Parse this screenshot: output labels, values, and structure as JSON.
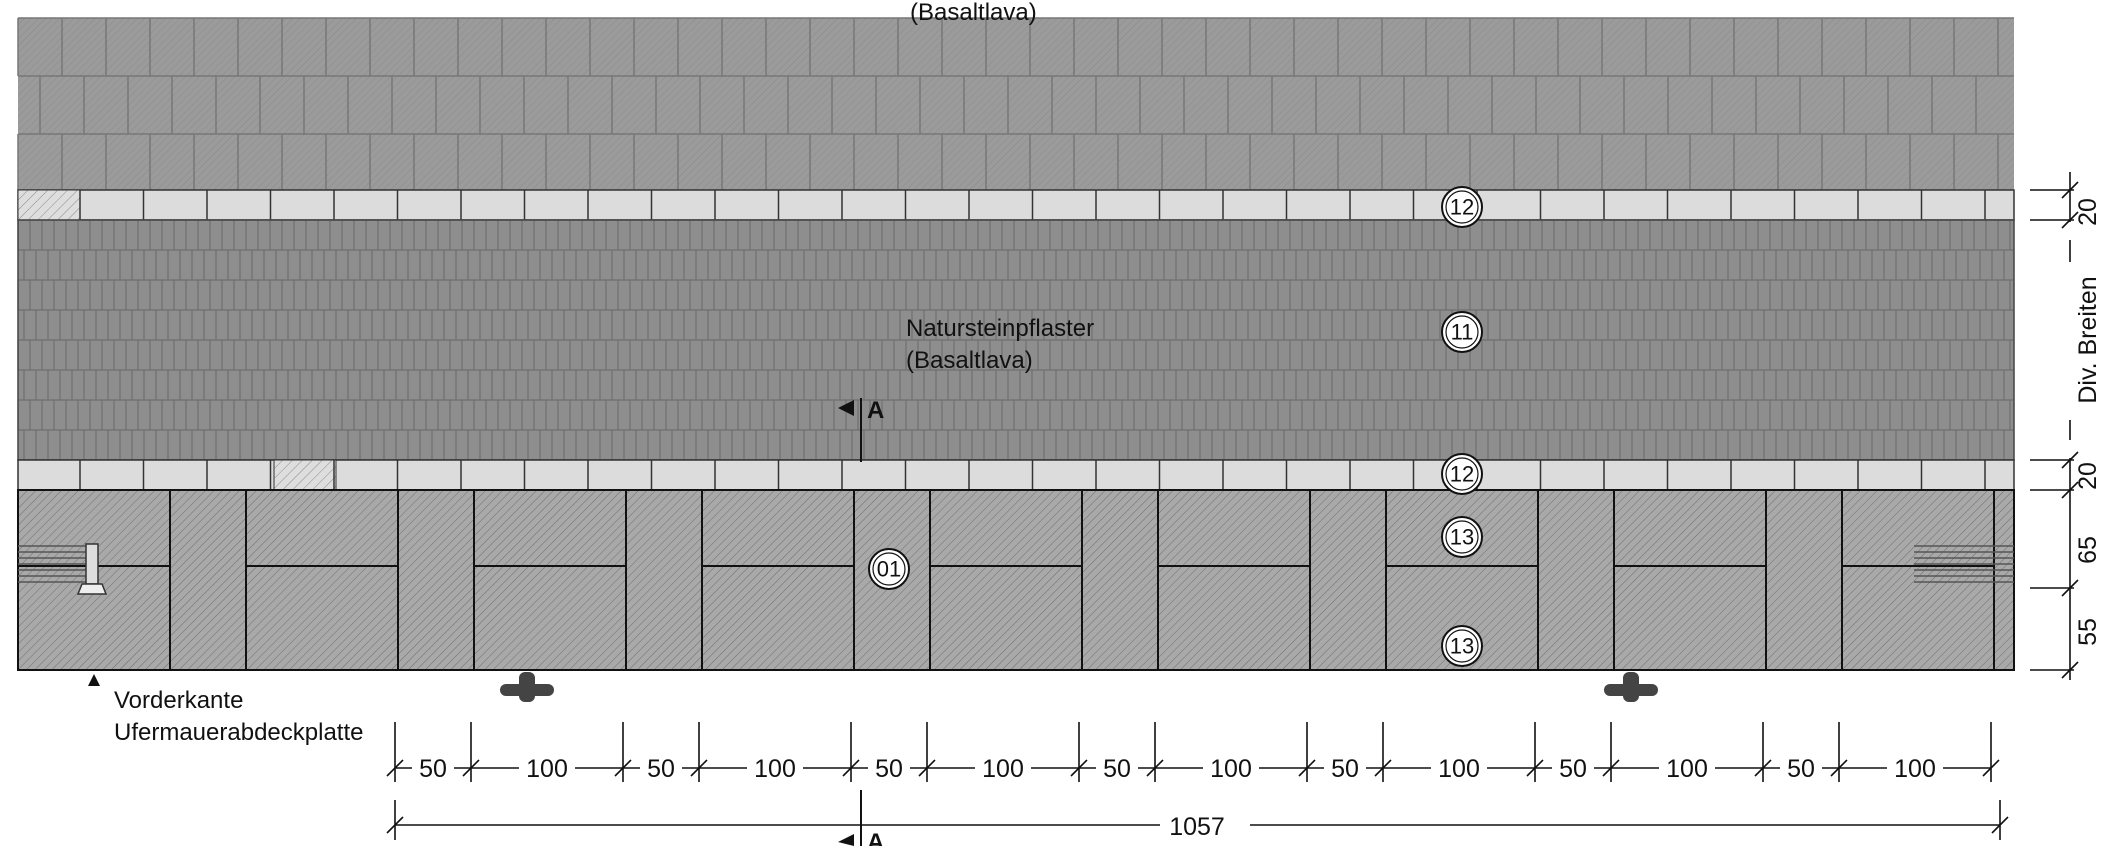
{
  "labels": {
    "top_paving_caption": "(Basaltlava)",
    "paving_name": "Natursteinpflaster",
    "paving_material": "(Basaltlava)",
    "section_mark": "A",
    "front_edge_line1": "Vorderkante",
    "front_edge_line2": "Ufermauerabdeckplatte",
    "side_dim_width_label": "Div. Breiten"
  },
  "tags": {
    "curb_top": "12",
    "paving": "11",
    "curb_bottom": "12",
    "slab_upper": "13",
    "slab_lower": "13",
    "wall_cap": "01"
  },
  "side_dimensions": {
    "curb_top": "20",
    "curb_bottom": "20",
    "slab_upper": "65",
    "slab_lower": "55"
  },
  "bottom_dimensions": {
    "segments": [
      "50",
      "100",
      "50",
      "100",
      "50",
      "100",
      "50",
      "100",
      "50",
      "100",
      "50",
      "100",
      "50",
      "100"
    ],
    "total": "1057"
  },
  "colors": {
    "paving_fill": "#9a9a9a",
    "cobble_fill": "#8c8c8c",
    "curb_fill": "#dcdcdc",
    "slab_fill": "#a8a8a8",
    "line": "#1a1a1a"
  }
}
